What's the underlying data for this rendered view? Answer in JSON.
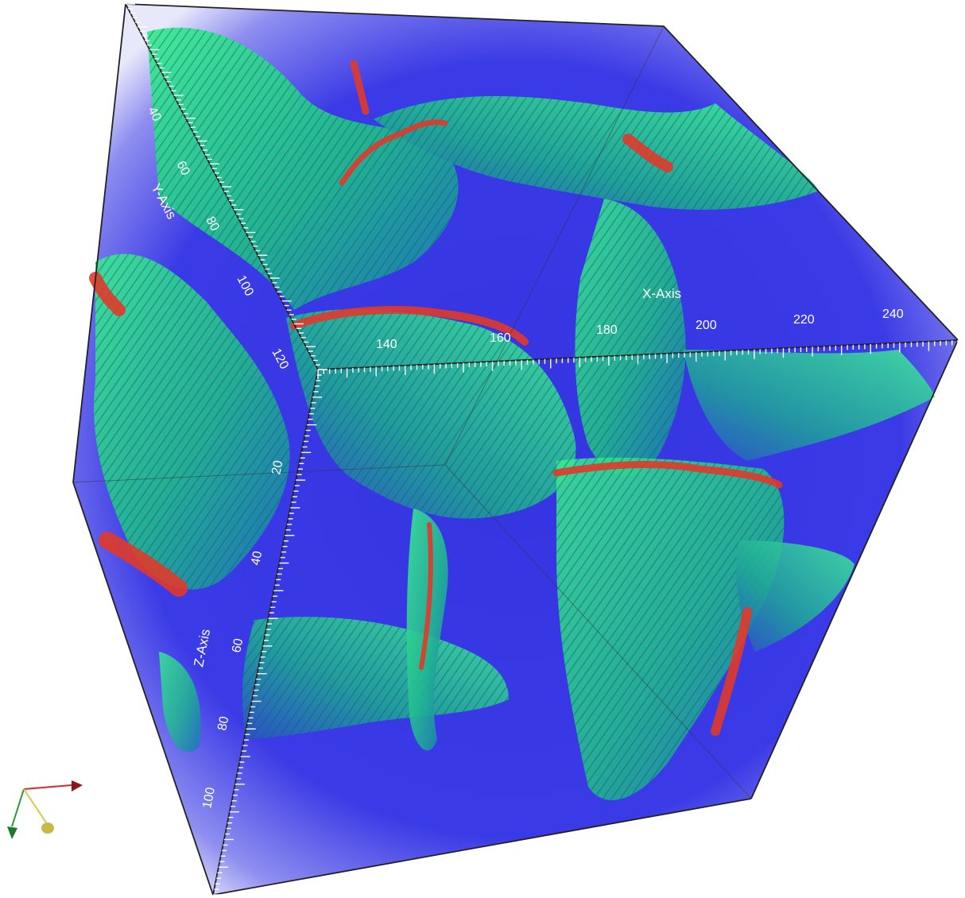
{
  "axes": {
    "x": {
      "title": "X-Axis",
      "ticks": [
        "140",
        "160",
        "180",
        "200",
        "220",
        "240"
      ]
    },
    "y": {
      "title": "Y-Axis",
      "ticks": [
        "40",
        "60",
        "80",
        "100",
        "120"
      ]
    },
    "z": {
      "title": "Z-Axis",
      "ticks": [
        "20",
        "40",
        "60",
        "80",
        "100"
      ]
    }
  },
  "colors": {
    "volume_background": "#3a3ae0",
    "surface": "#2fd88a",
    "surface_dark": "#1f9a9a",
    "ridge": "#e03a2a",
    "x_axis_arrow": "#d42a2a",
    "y_axis_arrow": "#2a9a3a",
    "z_axis_arrow": "#d4c84a",
    "box_edges": "#222222"
  },
  "orientation_widget": {
    "icon": "xyz-orientation-icon"
  }
}
